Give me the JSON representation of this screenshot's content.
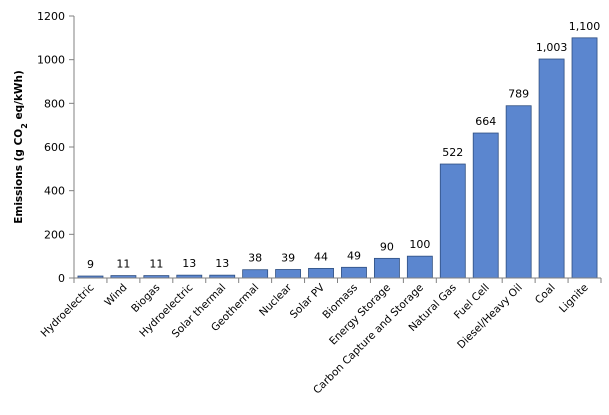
{
  "chart_data": {
    "type": "bar",
    "title": "",
    "xlabel": "",
    "ylabel": {
      "prefix": "Emissions (g CO",
      "sub": "2",
      "suffix": " eq/kWh)"
    },
    "ylim": [
      0,
      1200
    ],
    "yticks": [
      0,
      200,
      400,
      600,
      800,
      1000,
      1200
    ],
    "grid": false,
    "legend": "none",
    "bar_color": "#5b86cf",
    "bar_edge_color": "#2e4e80",
    "categories": [
      "Hydroelectric",
      "Wind",
      "Biogas",
      "Hydroelectric",
      "Solar thermal",
      "Geothermal",
      "Nuclear",
      "Solar PV",
      "Biomass",
      "Energy Storage",
      "Carbon Capture and Storage",
      "Natural Gas",
      "Fuel Cell",
      "Diesel/Heavy Oil",
      "Coal",
      "Lignite"
    ],
    "values": [
      9,
      11,
      11,
      13,
      13,
      38,
      39,
      44,
      49,
      90,
      100,
      522,
      664,
      789,
      1003,
      1100
    ],
    "value_labels": [
      "9",
      "11",
      "11",
      "13",
      "13",
      "38",
      "39",
      "44",
      "49",
      "90",
      "100",
      "522",
      "664",
      "789",
      "1,003",
      "1,100"
    ]
  }
}
